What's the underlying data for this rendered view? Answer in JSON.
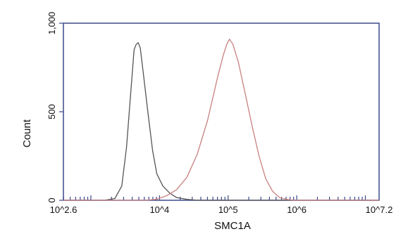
{
  "chart_data": {
    "type": "line",
    "title": "",
    "xlabel": "SMC1A",
    "ylabel": "Count",
    "x_scale": "log10",
    "xlim": [
      2.6,
      7.2
    ],
    "ylim": [
      0,
      1000
    ],
    "y_ticks": [
      {
        "value": 0,
        "label": "0"
      },
      {
        "value": 500,
        "label": "500"
      },
      {
        "value": 1000,
        "label": "1,000"
      }
    ],
    "x_ticks": [
      {
        "exp": 2.6,
        "label": "10^2.6"
      },
      {
        "exp": 4,
        "label": "10^4"
      },
      {
        "exp": 5,
        "label": "10^5"
      },
      {
        "exp": 6,
        "label": "10^6"
      },
      {
        "exp": 7.2,
        "label": "10^7.2"
      }
    ],
    "grid": false,
    "legend": "none",
    "series": [
      {
        "color": "#555555",
        "points": [
          [
            2.6,
            0
          ],
          [
            3.2,
            0
          ],
          [
            3.35,
            10
          ],
          [
            3.45,
            80
          ],
          [
            3.52,
            300
          ],
          [
            3.58,
            600
          ],
          [
            3.63,
            850
          ],
          [
            3.66,
            880
          ],
          [
            3.69,
            890
          ],
          [
            3.72,
            860
          ],
          [
            3.77,
            700
          ],
          [
            3.83,
            500
          ],
          [
            3.9,
            280
          ],
          [
            3.96,
            150
          ],
          [
            4.05,
            80
          ],
          [
            4.15,
            40
          ],
          [
            4.25,
            15
          ],
          [
            4.4,
            5
          ],
          [
            4.55,
            0
          ],
          [
            7.2,
            0
          ]
        ]
      },
      {
        "color": "#c98080",
        "points": [
          [
            2.6,
            0
          ],
          [
            3.8,
            0
          ],
          [
            3.95,
            5
          ],
          [
            4.1,
            25
          ],
          [
            4.25,
            60
          ],
          [
            4.4,
            130
          ],
          [
            4.55,
            260
          ],
          [
            4.7,
            450
          ],
          [
            4.85,
            700
          ],
          [
            4.93,
            820
          ],
          [
            4.98,
            880
          ],
          [
            5.02,
            910
          ],
          [
            5.07,
            880
          ],
          [
            5.15,
            780
          ],
          [
            5.25,
            600
          ],
          [
            5.35,
            420
          ],
          [
            5.45,
            250
          ],
          [
            5.55,
            120
          ],
          [
            5.65,
            50
          ],
          [
            5.75,
            15
          ],
          [
            5.85,
            5
          ],
          [
            5.95,
            0
          ],
          [
            7.2,
            0
          ]
        ]
      }
    ]
  }
}
